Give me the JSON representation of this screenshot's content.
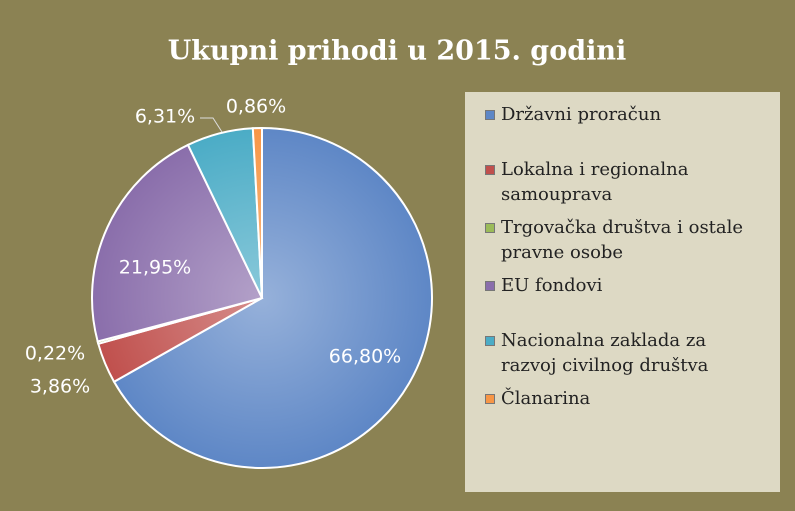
{
  "chart_data": {
    "type": "pie",
    "title": "Ukupni prihodi u 2015. godini",
    "categories": [
      "Državni proračun",
      "Lokalna i regionalna samouprava",
      "Trgovačka društva i ostale pravne osobe",
      "EU fondovi",
      "Nacionalna zaklada za razvoj civilnog društva",
      "Članarina"
    ],
    "values": [
      66.8,
      3.86,
      0.22,
      21.95,
      6.31,
      0.86
    ],
    "value_labels": [
      "66,80%",
      "3,86%",
      "0,22%",
      "21,95%",
      "6,31%",
      "0,86%"
    ],
    "colors": [
      "#5e87c6",
      "#c0504d",
      "#9bbb59",
      "#8a6eab",
      "#4bacc6",
      "#f79646"
    ],
    "legend": "right"
  }
}
